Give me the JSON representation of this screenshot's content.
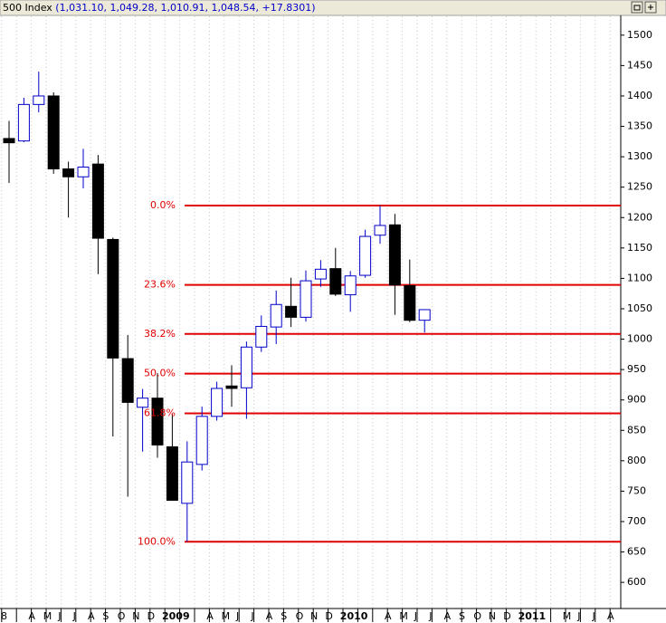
{
  "chart_data": {
    "type": "candlestick",
    "title_name": "500 Index",
    "title_values": "(1,031.10, 1,049.28, 1,010.91, 1,048.54, +17.8301)",
    "categories": [
      "8",
      null,
      "A",
      "M",
      "J",
      "J",
      "A",
      "S",
      "O",
      "N",
      "D",
      "2009",
      null,
      null,
      "A",
      "M",
      "J",
      "J",
      "A",
      "S",
      "O",
      "N",
      "D",
      "2010",
      null,
      null,
      "A",
      "M",
      "J",
      "J",
      "A",
      "S",
      "O",
      "N",
      "D",
      "2011",
      null,
      null,
      "M",
      "J",
      "J",
      "A"
    ],
    "open": [
      null,
      1330,
      1326,
      1386,
      1400,
      1280,
      1267,
      1288,
      1164,
      968,
      888,
      903,
      823,
      730,
      794,
      873,
      923,
      920,
      987,
      1020,
      1054,
      1036,
      1099,
      1116,
      1073,
      1105,
      1171,
      1188,
      1088,
      1031.1,
      null,
      null,
      null,
      null,
      null,
      null,
      null,
      null,
      null,
      null,
      null,
      null
    ],
    "high": [
      null,
      1359,
      1397,
      1440,
      1406,
      1292,
      1313,
      1303,
      1167,
      1007,
      918,
      944,
      877,
      832,
      889,
      930,
      957,
      996,
      1039,
      1080,
      1101,
      1113,
      1130,
      1150,
      1112,
      1180,
      1220,
      1206,
      1131,
      1049.28,
      null,
      null,
      null,
      null,
      null,
      null,
      null,
      null,
      null,
      null,
      null,
      null
    ],
    "low": [
      null,
      1257,
      1324,
      1373,
      1272,
      1200,
      1248,
      1107,
      840,
      741,
      815,
      805,
      735,
      667,
      784,
      866,
      889,
      869,
      979,
      992,
      1020,
      1029,
      1086,
      1071,
      1045,
      1101,
      1157,
      1040,
      1028,
      1010.91,
      null,
      null,
      null,
      null,
      null,
      null,
      null,
      null,
      null,
      null,
      null,
      null
    ],
    "close": [
      null,
      1323,
      1386,
      1400,
      1280,
      1267,
      1283,
      1166,
      969,
      896,
      903,
      826,
      735,
      798,
      873,
      919,
      919,
      987,
      1021,
      1057,
      1036,
      1096,
      1115,
      1074,
      1104,
      1169,
      1187,
      1089,
      1031,
      1048.54,
      null,
      null,
      null,
      null,
      null,
      null,
      null,
      null,
      null,
      null,
      null,
      null
    ],
    "up_color": "#0000c8",
    "down_color": "#000000",
    "levels": [
      {
        "value": 1219.8,
        "label": "0.0%"
      },
      {
        "value": 1089.3,
        "label": "23.6%"
      },
      {
        "value": 1008.6,
        "label": "38.2%"
      },
      {
        "value": 943.3,
        "label": "50.0%"
      },
      {
        "value": 878.0,
        "label": "61.8%"
      },
      {
        "value": 666.8,
        "label": "100.0%"
      }
    ],
    "level_color": "#e00000",
    "ylim": [
      557,
      1531
    ],
    "yticks": [
      600,
      650,
      700,
      750,
      800,
      850,
      900,
      950,
      1000,
      1050,
      1100,
      1150,
      1200,
      1250,
      1300,
      1350,
      1400,
      1450,
      1500
    ],
    "grid": true
  }
}
